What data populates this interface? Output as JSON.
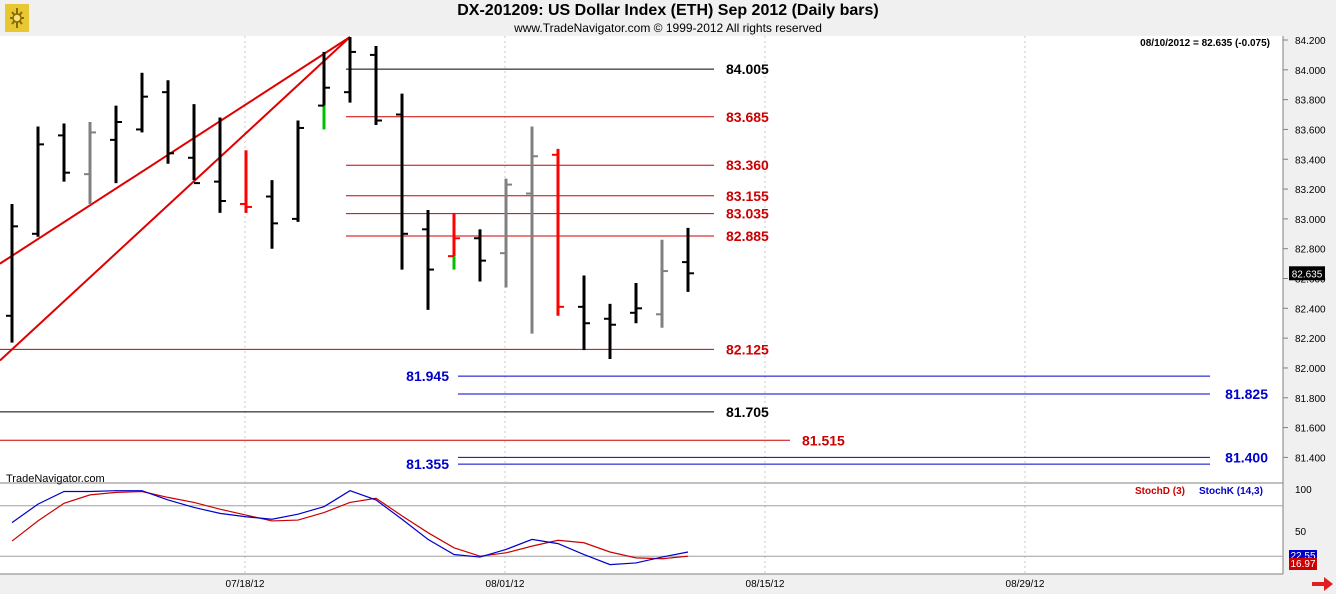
{
  "header": {
    "title": "DX-201209:  US Dollar Index (ETH) Sep 2012  (Daily bars)",
    "copyright": "www.TradeNavigator.com © 1999-2012 All rights reserved"
  },
  "readout": "08/10/2012 = 82.635 (-0.075)",
  "current_price_label": "82.635",
  "watermark": "TradeNavigator.com",
  "colors": {
    "up_bar": "#000000",
    "neutral_bar": "#808080",
    "signal_red": "#ff0000",
    "signal_green": "#00c000",
    "trendline": "#e00000",
    "red_level": "#cc0000",
    "blue_level": "#0000cc",
    "black_level": "#000000",
    "stoch_d": "#cc0000",
    "stoch_k": "#0000cc"
  },
  "chart_data": [
    {
      "type": "ohlc",
      "title": "DX-201209:  US Dollar Index (ETH) Sep 2012  (Daily bars)",
      "x_ticks": [
        "07/18/12",
        "08/01/12",
        "08/15/12",
        "08/29/12"
      ],
      "y_ticks": [
        "84.200",
        "84.000",
        "83.800",
        "83.600",
        "83.400",
        "83.200",
        "83.000",
        "82.800",
        "82.600",
        "82.400",
        "82.200",
        "82.000",
        "81.800",
        "81.600",
        "81.400"
      ],
      "ylim": [
        81.3,
        84.2
      ],
      "bars": [
        {
          "o": 82.35,
          "h": 83.1,
          "l": 82.17,
          "c": 82.95,
          "color": "black"
        },
        {
          "o": 82.9,
          "h": 83.62,
          "l": 82.88,
          "c": 83.5,
          "color": "black"
        },
        {
          "o": 83.56,
          "h": 83.64,
          "l": 83.25,
          "c": 83.31,
          "color": "black"
        },
        {
          "o": 83.3,
          "h": 83.65,
          "l": 83.1,
          "c": 83.58,
          "color": "gray"
        },
        {
          "o": 83.53,
          "h": 83.76,
          "l": 83.24,
          "c": 83.65,
          "color": "black"
        },
        {
          "o": 83.6,
          "h": 83.98,
          "l": 83.58,
          "c": 83.82,
          "color": "black"
        },
        {
          "o": 83.85,
          "h": 83.93,
          "l": 83.37,
          "c": 83.44,
          "color": "black"
        },
        {
          "o": 83.41,
          "h": 83.77,
          "l": 83.26,
          "c": 83.24,
          "color": "black"
        },
        {
          "o": 83.25,
          "h": 83.68,
          "l": 83.04,
          "c": 83.12,
          "color": "black"
        },
        {
          "o": 83.1,
          "h": 83.46,
          "l": 83.04,
          "c": 83.08,
          "color": "red"
        },
        {
          "o": 83.15,
          "h": 83.26,
          "l": 82.8,
          "c": 82.97,
          "color": "black"
        },
        {
          "o": 83.0,
          "h": 83.66,
          "l": 82.98,
          "c": 83.61,
          "color": "black"
        },
        {
          "o": 83.76,
          "h": 84.12,
          "l": 83.6,
          "c": 83.88,
          "color": "black",
          "low_tail": "green"
        },
        {
          "o": 83.85,
          "h": 84.22,
          "l": 83.78,
          "c": 84.12,
          "color": "black"
        },
        {
          "o": 84.1,
          "h": 84.16,
          "l": 83.63,
          "c": 83.66,
          "color": "black"
        },
        {
          "o": 83.7,
          "h": 83.84,
          "l": 82.66,
          "c": 82.9,
          "color": "black"
        },
        {
          "o": 82.93,
          "h": 83.06,
          "l": 82.39,
          "c": 82.66,
          "color": "black"
        },
        {
          "o": 82.75,
          "h": 83.04,
          "l": 82.66,
          "c": 82.87,
          "color": "red",
          "low_tail": "green"
        },
        {
          "o": 82.87,
          "h": 82.93,
          "l": 82.58,
          "c": 82.72,
          "color": "black"
        },
        {
          "o": 82.77,
          "h": 83.27,
          "l": 82.54,
          "c": 83.23,
          "color": "gray"
        },
        {
          "o": 83.17,
          "h": 83.62,
          "l": 82.23,
          "c": 83.42,
          "color": "gray"
        },
        {
          "o": 83.43,
          "h": 83.47,
          "l": 82.35,
          "c": 82.41,
          "color": "red"
        },
        {
          "o": 82.41,
          "h": 82.62,
          "l": 82.12,
          "c": 82.3,
          "color": "black"
        },
        {
          "o": 82.33,
          "h": 82.43,
          "l": 82.06,
          "c": 82.29,
          "color": "black"
        },
        {
          "o": 82.37,
          "h": 82.57,
          "l": 82.3,
          "c": 82.4,
          "color": "black"
        },
        {
          "o": 82.36,
          "h": 82.86,
          "l": 82.27,
          "c": 82.65,
          "color": "gray"
        },
        {
          "o": 82.71,
          "h": 82.94,
          "l": 82.51,
          "c": 82.635,
          "color": "black"
        }
      ],
      "levels": [
        {
          "value": 84.005,
          "label": "84.005",
          "color": "black",
          "from_bar": 13,
          "to_bar": 26,
          "label_side": "right"
        },
        {
          "value": 83.685,
          "label": "83.685",
          "color": "red",
          "from_bar": 13,
          "to_bar": 26,
          "label_side": "right"
        },
        {
          "value": 83.36,
          "label": "83.360",
          "color": "red",
          "from_bar": 13,
          "to_bar": 26,
          "label_side": "right"
        },
        {
          "value": 83.155,
          "label": "83.155",
          "color": "red",
          "from_bar": 13,
          "to_bar": 26,
          "label_side": "right"
        },
        {
          "value": 83.035,
          "label": "83.035",
          "color": "red",
          "from_bar": 13,
          "to_bar": 26,
          "label_side": "right"
        },
        {
          "value": 82.885,
          "label": "82.885",
          "color": "red",
          "from_bar": 13,
          "to_bar": 26,
          "label_side": "right"
        },
        {
          "value": 82.125,
          "label": "82.125",
          "color": "red",
          "from_bar": -1,
          "to_bar": 26,
          "label_side": "right"
        },
        {
          "value": 81.945,
          "label": "81.945",
          "color": "blue",
          "from_bar": 17,
          "to_bar": 46,
          "label_side": "left"
        },
        {
          "value": 81.825,
          "label": "81.825",
          "color": "blue",
          "from_bar": 17,
          "to_bar": 46,
          "label_side": "right"
        },
        {
          "value": 81.705,
          "label": "81.705",
          "color": "black",
          "from_bar": -1,
          "to_bar": 26,
          "label_side": "right"
        },
        {
          "value": 81.515,
          "label": "81.515",
          "color": "red",
          "from_bar": -1,
          "to_bar": 29,
          "label_side": "right"
        },
        {
          "value": 81.4,
          "label": "81.400",
          "color": "blue",
          "from_bar": 17,
          "to_bar": 46,
          "label_side": "right"
        },
        {
          "value": 81.355,
          "label": "81.355",
          "color": "blue",
          "from_bar": 17,
          "to_bar": 46,
          "label_side": "left"
        }
      ],
      "trendlines": [
        {
          "from_bar": -1,
          "from_value": 82.7,
          "to_bar": 13,
          "to_value": 84.22
        },
        {
          "from_bar": -1,
          "from_value": 82.05,
          "to_bar": 13,
          "to_value": 84.22
        }
      ]
    },
    {
      "type": "line",
      "title": "",
      "legend": [
        "StochD (3)",
        "StochK (14,3)"
      ],
      "y_ticks": [
        "100",
        "50"
      ],
      "ylim": [
        0,
        100
      ],
      "series": [
        {
          "name": "StochD (3)",
          "color": "#cc0000",
          "values": [
            38,
            62,
            83,
            93,
            96,
            97,
            90,
            84,
            76,
            69,
            62,
            63,
            72,
            84,
            89,
            68,
            48,
            30,
            20,
            24,
            32,
            39,
            36,
            25,
            18,
            17,
            20
          ]
        },
        {
          "name": "StochK (14,3)",
          "color": "#0000cc",
          "values": [
            60,
            82,
            97,
            97,
            98,
            98,
            87,
            78,
            71,
            67,
            64,
            70,
            79,
            98,
            87,
            64,
            40,
            22,
            19,
            28,
            40,
            35,
            22,
            10,
            12,
            19,
            25
          ]
        }
      ],
      "current_labels": [
        "22.55",
        "16.97"
      ]
    }
  ]
}
